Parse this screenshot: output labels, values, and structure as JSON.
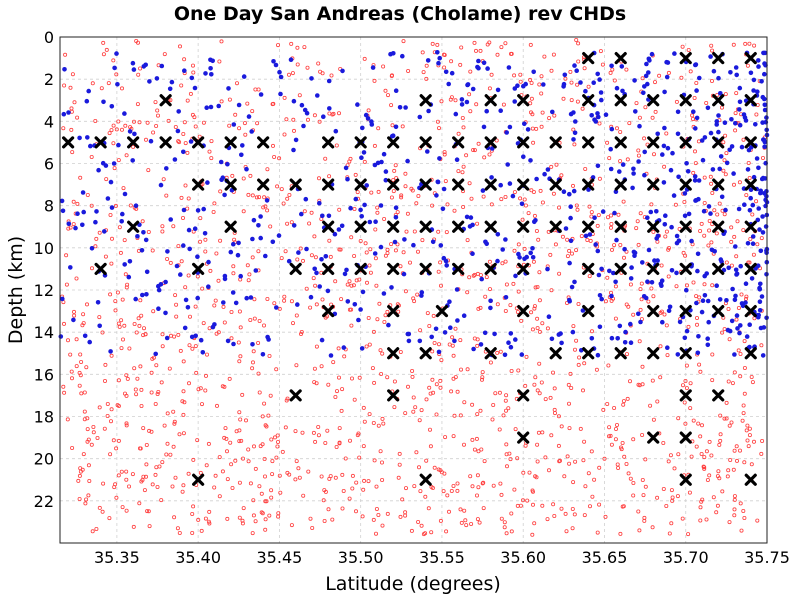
{
  "chart_data": {
    "type": "scatter",
    "title": "One Day San Andreas (Cholame) rev CHDs",
    "xlabel": "Latitude (degrees)",
    "ylabel": "Depth (km)",
    "xlim": [
      35.315,
      35.75
    ],
    "ylim": [
      24,
      0
    ],
    "y_inverted": true,
    "grid": true,
    "legend": "none",
    "x_ticks": [
      "35.35",
      "35.40",
      "35.45",
      "35.50",
      "35.55",
      "35.60",
      "35.65",
      "35.70",
      "35.75"
    ],
    "y_ticks": [
      "0",
      "2",
      "4",
      "6",
      "8",
      "10",
      "12",
      "14",
      "16",
      "18",
      "20",
      "22"
    ],
    "colors": {
      "background_events": "#ff4040",
      "located_events": "#1a1adc",
      "markers": "#000000"
    },
    "series": [
      {
        "marker": "x",
        "color": "#000000",
        "points": [
          [
            35.64,
            1
          ],
          [
            35.66,
            1
          ],
          [
            35.7,
            1
          ],
          [
            35.72,
            1
          ],
          [
            35.74,
            1
          ],
          [
            35.38,
            3
          ],
          [
            35.54,
            3
          ],
          [
            35.58,
            3
          ],
          [
            35.6,
            3
          ],
          [
            35.64,
            3
          ],
          [
            35.66,
            3
          ],
          [
            35.68,
            3
          ],
          [
            35.7,
            3
          ],
          [
            35.72,
            3
          ],
          [
            35.74,
            3
          ],
          [
            35.32,
            5
          ],
          [
            35.34,
            5
          ],
          [
            35.36,
            5
          ],
          [
            35.38,
            5
          ],
          [
            35.4,
            5
          ],
          [
            35.42,
            5
          ],
          [
            35.44,
            5
          ],
          [
            35.48,
            5
          ],
          [
            35.5,
            5
          ],
          [
            35.52,
            5
          ],
          [
            35.54,
            5
          ],
          [
            35.56,
            5
          ],
          [
            35.58,
            5
          ],
          [
            35.6,
            5
          ],
          [
            35.62,
            5
          ],
          [
            35.64,
            5
          ],
          [
            35.66,
            5
          ],
          [
            35.68,
            5
          ],
          [
            35.7,
            5
          ],
          [
            35.72,
            5
          ],
          [
            35.74,
            5
          ],
          [
            35.4,
            7
          ],
          [
            35.42,
            7
          ],
          [
            35.44,
            7
          ],
          [
            35.46,
            7
          ],
          [
            35.48,
            7
          ],
          [
            35.5,
            7
          ],
          [
            35.52,
            7
          ],
          [
            35.54,
            7
          ],
          [
            35.56,
            7
          ],
          [
            35.58,
            7
          ],
          [
            35.6,
            7
          ],
          [
            35.62,
            7
          ],
          [
            35.64,
            7
          ],
          [
            35.66,
            7
          ],
          [
            35.68,
            7
          ],
          [
            35.7,
            7
          ],
          [
            35.72,
            7
          ],
          [
            35.74,
            7
          ],
          [
            35.36,
            9
          ],
          [
            35.42,
            9
          ],
          [
            35.48,
            9
          ],
          [
            35.5,
            9
          ],
          [
            35.52,
            9
          ],
          [
            35.54,
            9
          ],
          [
            35.56,
            9
          ],
          [
            35.58,
            9
          ],
          [
            35.6,
            9
          ],
          [
            35.62,
            9
          ],
          [
            35.64,
            9
          ],
          [
            35.66,
            9
          ],
          [
            35.68,
            9
          ],
          [
            35.7,
            9
          ],
          [
            35.72,
            9
          ],
          [
            35.74,
            9
          ],
          [
            35.34,
            11
          ],
          [
            35.4,
            11
          ],
          [
            35.46,
            11
          ],
          [
            35.48,
            11
          ],
          [
            35.5,
            11
          ],
          [
            35.52,
            11
          ],
          [
            35.54,
            11
          ],
          [
            35.56,
            11
          ],
          [
            35.58,
            11
          ],
          [
            35.6,
            11
          ],
          [
            35.64,
            11
          ],
          [
            35.66,
            11
          ],
          [
            35.68,
            11
          ],
          [
            35.7,
            11
          ],
          [
            35.72,
            11
          ],
          [
            35.74,
            11
          ],
          [
            35.48,
            13
          ],
          [
            35.52,
            13
          ],
          [
            35.55,
            13
          ],
          [
            35.6,
            13
          ],
          [
            35.64,
            13
          ],
          [
            35.68,
            13
          ],
          [
            35.7,
            13
          ],
          [
            35.72,
            13
          ],
          [
            35.74,
            13
          ],
          [
            35.52,
            15
          ],
          [
            35.54,
            15
          ],
          [
            35.58,
            15
          ],
          [
            35.62,
            15
          ],
          [
            35.64,
            15
          ],
          [
            35.66,
            15
          ],
          [
            35.68,
            15
          ],
          [
            35.7,
            15
          ],
          [
            35.74,
            15
          ],
          [
            35.46,
            17
          ],
          [
            35.52,
            17
          ],
          [
            35.6,
            17
          ],
          [
            35.7,
            17
          ],
          [
            35.72,
            17
          ],
          [
            35.6,
            19
          ],
          [
            35.68,
            19
          ],
          [
            35.7,
            19
          ],
          [
            35.4,
            21
          ],
          [
            35.54,
            21
          ],
          [
            35.7,
            21
          ],
          [
            35.74,
            21
          ]
        ]
      }
    ]
  }
}
